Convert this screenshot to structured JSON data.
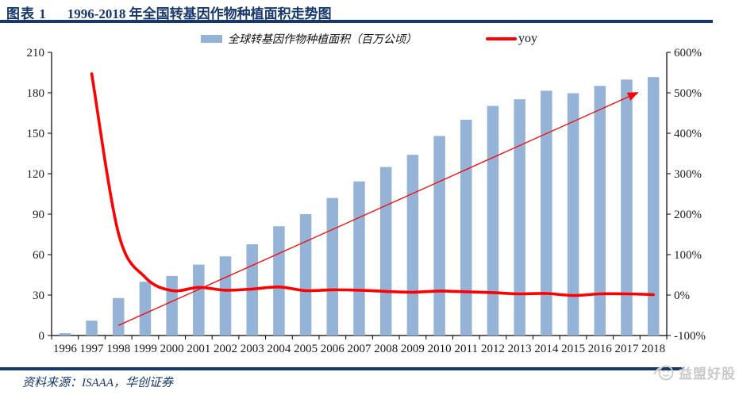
{
  "header": {
    "label": "图表 1",
    "title": "1996-2018 年全国转基因作物种植面积走势图"
  },
  "legend": {
    "bars": "全球转基因作物种植面积（百万公顷）",
    "line": "yoy"
  },
  "footer": {
    "source": "资料来源：ISAAA，华创证券",
    "watermark": "益盟好股"
  },
  "colors": {
    "navy": "#17386e",
    "bar": "#95b3d7",
    "line": "#ff0000",
    "axis": "#000000",
    "tick_text": "#1a1a1a",
    "watermark": "#c9c9c9"
  },
  "chart_data": {
    "type": "bar",
    "title": "1996-2018 年全国转基因作物种植面积走势图",
    "categories": [
      "1996",
      "1997",
      "1998",
      "1999",
      "2000",
      "2001",
      "2002",
      "2003",
      "2004",
      "2005",
      "2006",
      "2007",
      "2008",
      "2009",
      "2010",
      "2011",
      "2012",
      "2013",
      "2014",
      "2015",
      "2016",
      "2017",
      "2018"
    ],
    "series": [
      {
        "name": "全球转基因作物种植面积（百万公顷）",
        "type": "bar",
        "axis": "left",
        "values": [
          1.7,
          11,
          27.8,
          39.9,
          44.2,
          52.6,
          58.7,
          67.7,
          81,
          90,
          102,
          114.3,
          125,
          134,
          148,
          160,
          170.3,
          175.2,
          181.5,
          179.7,
          185.1,
          189.8,
          191.7
        ]
      },
      {
        "name": "yoy",
        "type": "line",
        "axis": "right",
        "values_pct": [
          null,
          547,
          153,
          44,
          11,
          19,
          12,
          15,
          20,
          11,
          13,
          12,
          9,
          7,
          10,
          8,
          6,
          3,
          4,
          -1,
          3,
          3,
          1
        ]
      }
    ],
    "left_axis": {
      "min": 0,
      "max": 210,
      "step": 30,
      "tick_labels": [
        "0",
        "30",
        "60",
        "90",
        "120",
        "150",
        "180",
        "210"
      ]
    },
    "right_axis": {
      "min": -100,
      "max": 600,
      "step": 100,
      "tick_labels": [
        "-100%",
        "0%",
        "100%",
        "200%",
        "300%",
        "400%",
        "500%",
        "600%"
      ]
    },
    "annotation_arrow": {
      "from": {
        "year_index": 2,
        "pct": -75
      },
      "to": {
        "year_index": 21.4,
        "pct": 500
      }
    },
    "grid": false,
    "legend_position": "top"
  }
}
